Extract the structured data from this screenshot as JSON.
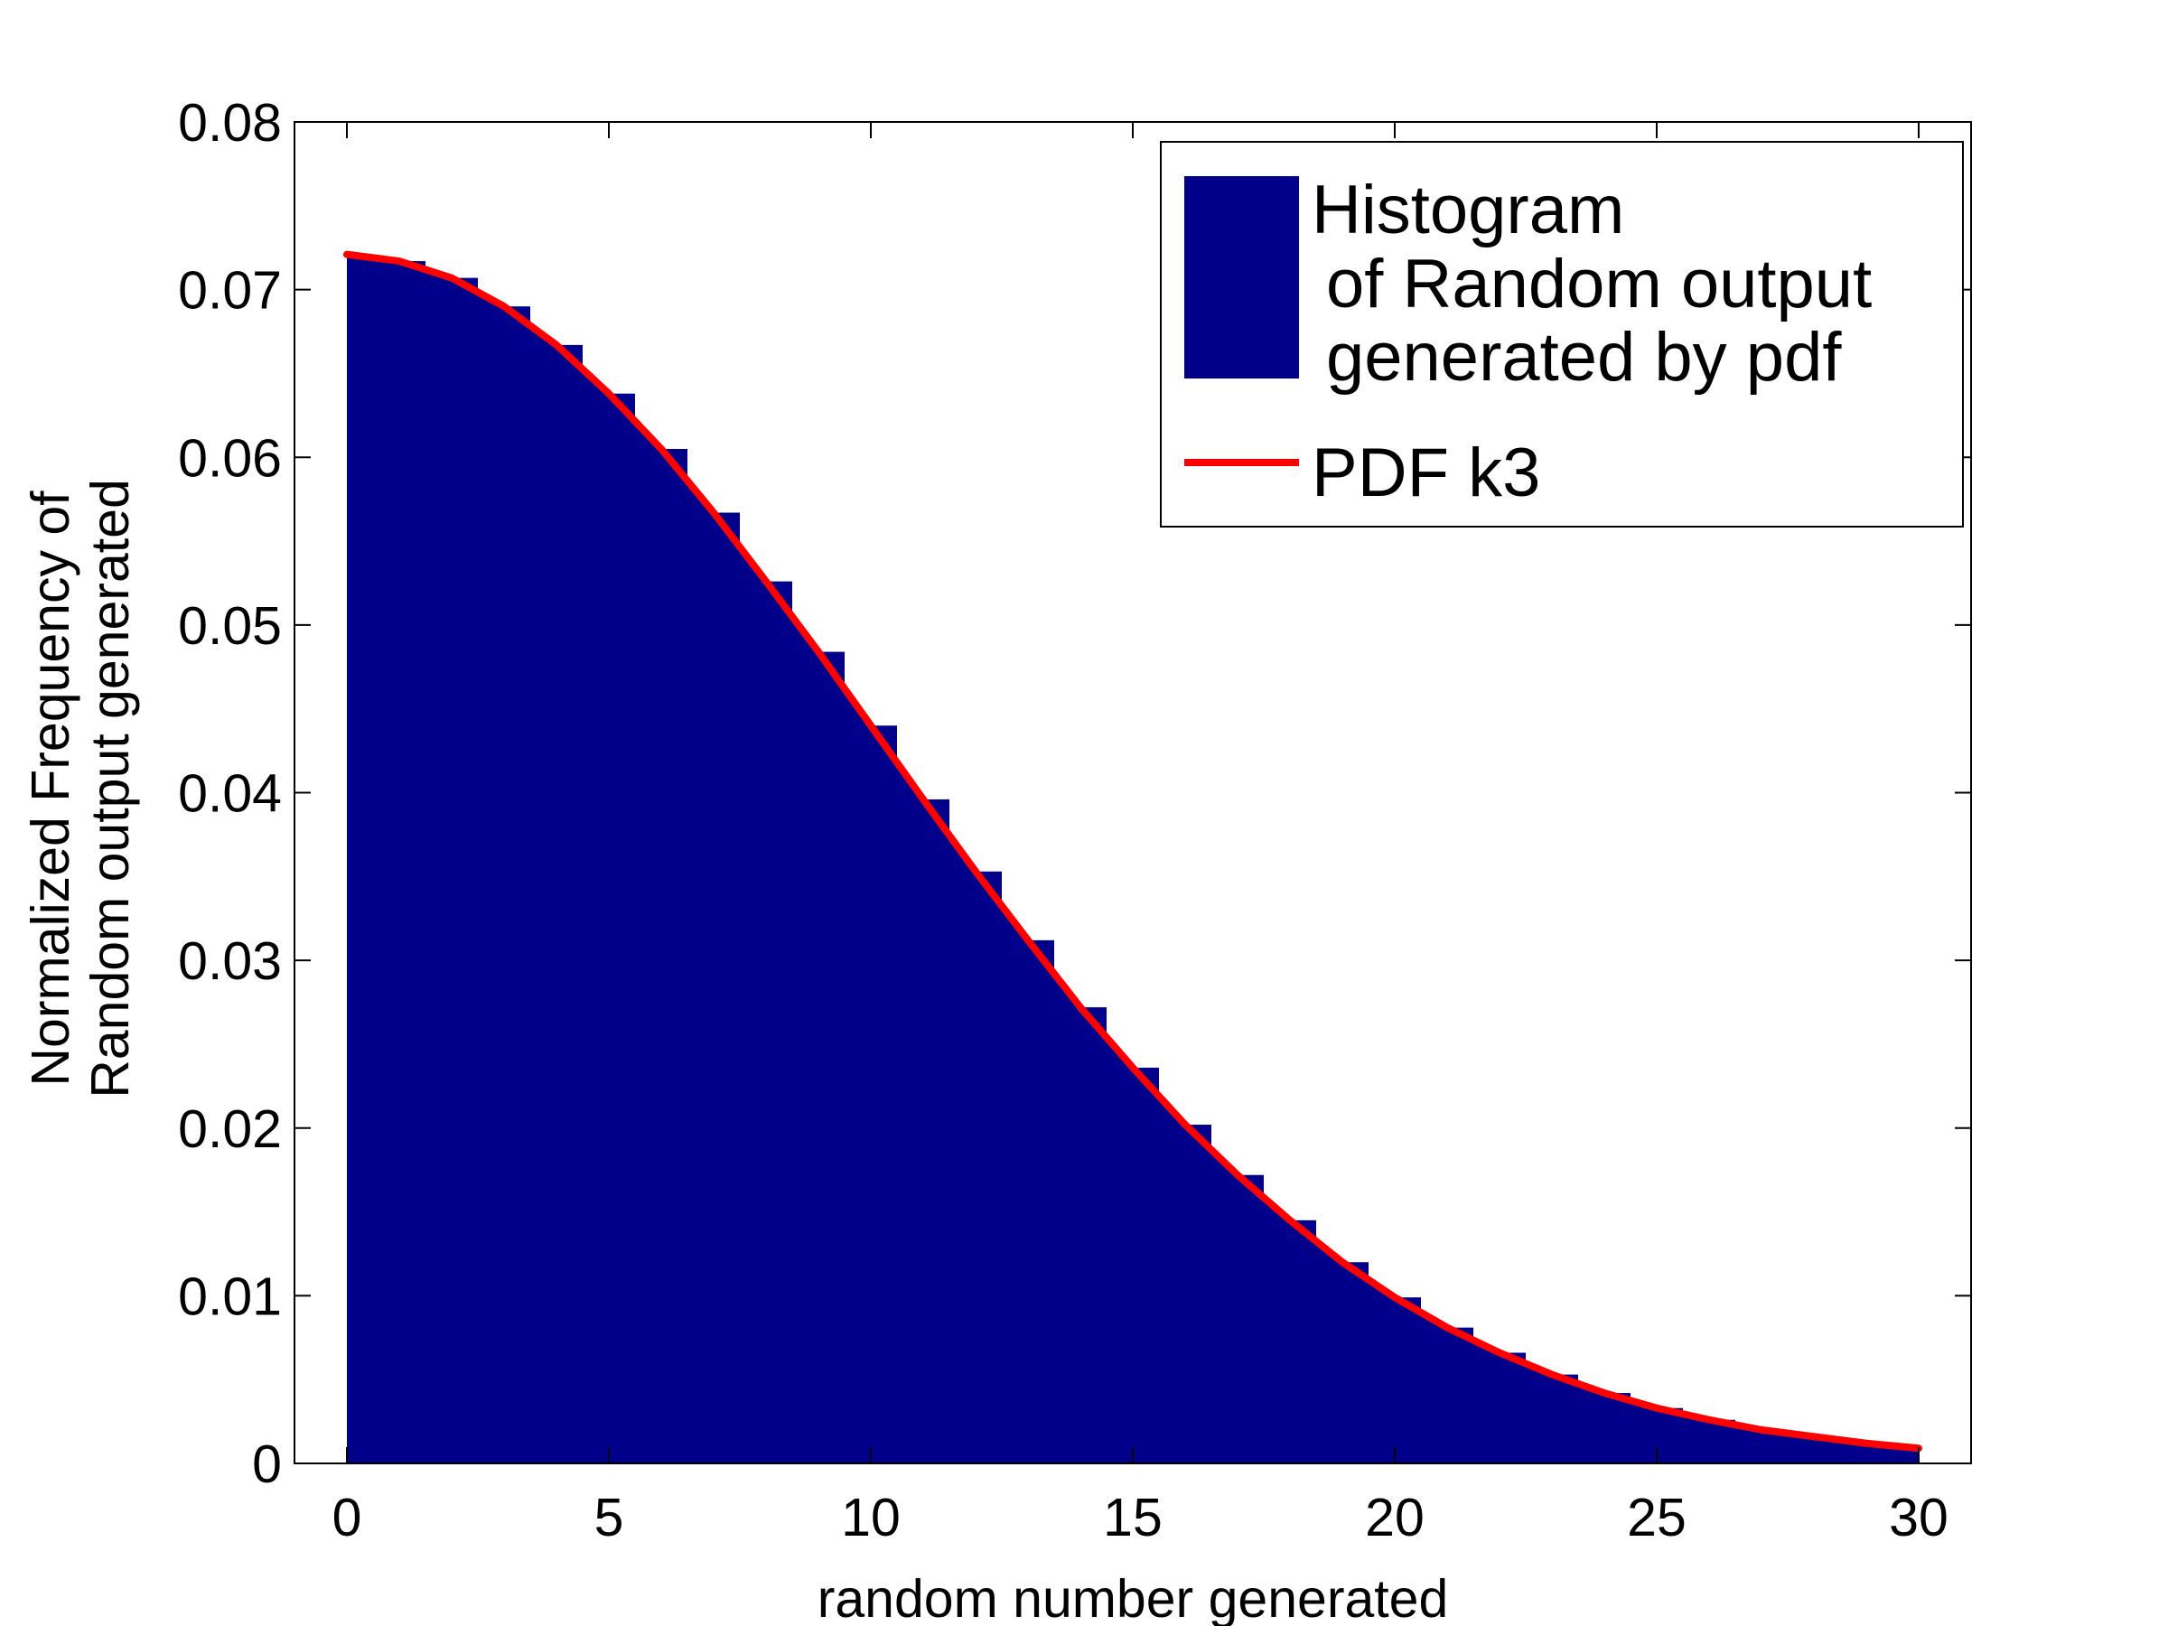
{
  "chart_data": {
    "type": "bar",
    "xlabel": "random number generated",
    "ylabel_lines": [
      "Normalized Frequency of",
      "Random output generated"
    ],
    "xlim": [
      -1,
      31
    ],
    "ylim": [
      0,
      0.08
    ],
    "xticks": [
      0,
      5,
      10,
      15,
      20,
      25,
      30
    ],
    "yticks": [
      0,
      0.01,
      0.02,
      0.03,
      0.04,
      0.05,
      0.06,
      0.07,
      0.08
    ],
    "xtick_labels": [
      "0",
      "5",
      "10",
      "15",
      "20",
      "25",
      "30"
    ],
    "ytick_labels": [
      "0",
      "0.01",
      "0.02",
      "0.03",
      "0.04",
      "0.05",
      "0.06",
      "0.07",
      "0.08"
    ],
    "grid": false,
    "legend_position": "top-right",
    "series": [
      {
        "name_lines": [
          "Histogram",
          "of Random output",
          "generated by pdf"
        ],
        "kind": "histogram",
        "color": "#00008B",
        "x": [
          0,
          1,
          2,
          3,
          4,
          5,
          6,
          7,
          8,
          9,
          10,
          11,
          12,
          13,
          14,
          15,
          16,
          17,
          18,
          19,
          20,
          21,
          22,
          23,
          24,
          25,
          26,
          27,
          28,
          29,
          30
        ],
        "y": [
          0.0721,
          0.0717,
          0.0707,
          0.069,
          0.0667,
          0.0638,
          0.0605,
          0.0567,
          0.0526,
          0.0484,
          0.044,
          0.0396,
          0.0353,
          0.0312,
          0.0272,
          0.0236,
          0.0202,
          0.0172,
          0.0145,
          0.012,
          0.0099,
          0.0081,
          0.0066,
          0.0053,
          0.0042,
          0.0033,
          0.0026,
          0.002,
          0.0016,
          0.0012,
          0.0009
        ]
      },
      {
        "name": "PDF k3",
        "kind": "line",
        "color": "#FF0000",
        "x": [
          0,
          1,
          2,
          3,
          4,
          5,
          6,
          7,
          8,
          9,
          10,
          11,
          12,
          13,
          14,
          15,
          16,
          17,
          18,
          19,
          20,
          21,
          22,
          23,
          24,
          25,
          26,
          27,
          28,
          29,
          30
        ],
        "y": [
          0.0721,
          0.0717,
          0.0707,
          0.069,
          0.0667,
          0.0638,
          0.0605,
          0.0567,
          0.0526,
          0.0484,
          0.044,
          0.0396,
          0.0353,
          0.0312,
          0.0272,
          0.0236,
          0.0202,
          0.0172,
          0.0145,
          0.012,
          0.0099,
          0.0081,
          0.0066,
          0.0053,
          0.0042,
          0.0033,
          0.0026,
          0.002,
          0.0016,
          0.0012,
          0.0009
        ]
      }
    ]
  }
}
